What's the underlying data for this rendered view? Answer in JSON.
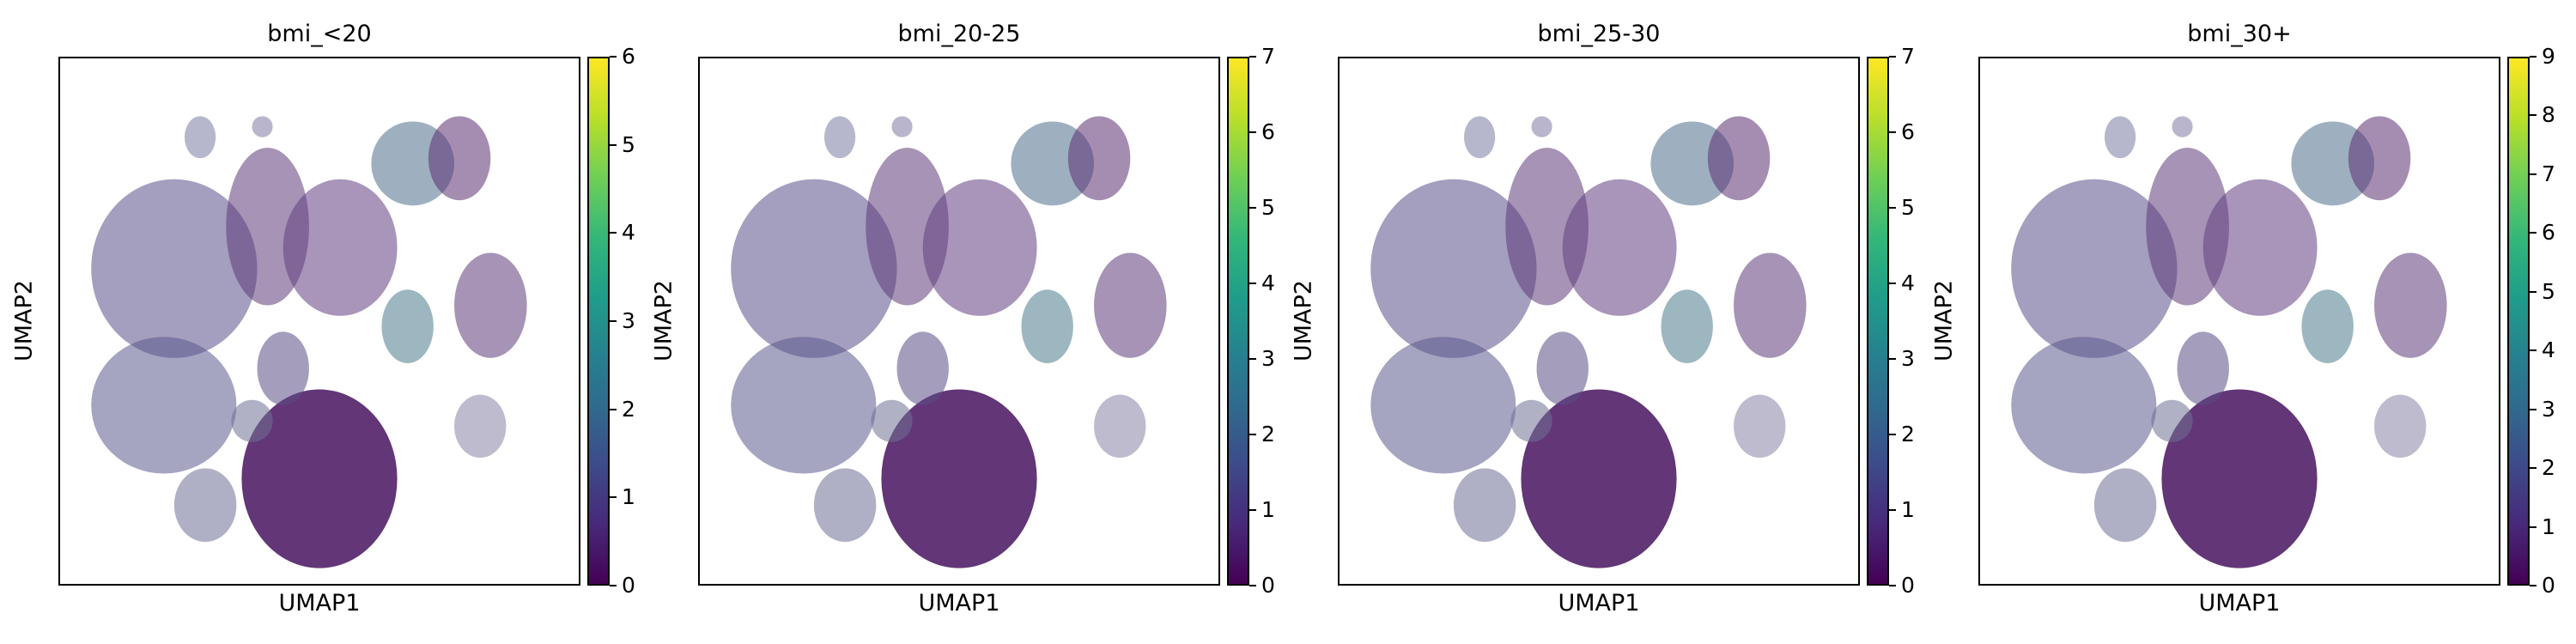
{
  "chart_data": [
    {
      "type": "scatter",
      "title": "bmi_<20",
      "xlabel": "UMAP1",
      "ylabel": "UMAP2",
      "colorbar": {
        "colormap": "viridis",
        "range": [
          0,
          6
        ],
        "ticks": [
          "0",
          "1",
          "2",
          "3",
          "4",
          "5",
          "6"
        ]
      }
    },
    {
      "type": "scatter",
      "title": "bmi_20-25",
      "xlabel": "UMAP1",
      "ylabel": "UMAP2",
      "colorbar": {
        "colormap": "viridis",
        "range": [
          0,
          7
        ],
        "ticks": [
          "0",
          "1",
          "2",
          "3",
          "4",
          "5",
          "6",
          "7"
        ]
      }
    },
    {
      "type": "scatter",
      "title": "bmi_25-30",
      "xlabel": "UMAP1",
      "ylabel": "UMAP2",
      "colorbar": {
        "colormap": "viridis",
        "range": [
          0,
          7
        ],
        "ticks": [
          "0",
          "1",
          "2",
          "3",
          "4",
          "5",
          "6",
          "7"
        ]
      }
    },
    {
      "type": "scatter",
      "title": "bmi_30+",
      "xlabel": "UMAP1",
      "ylabel": "UMAP2",
      "colorbar": {
        "colormap": "viridis",
        "range": [
          0,
          9
        ],
        "ticks": [
          "0",
          "1",
          "2",
          "3",
          "4",
          "5",
          "6",
          "7",
          "8",
          "9"
        ]
      }
    }
  ]
}
